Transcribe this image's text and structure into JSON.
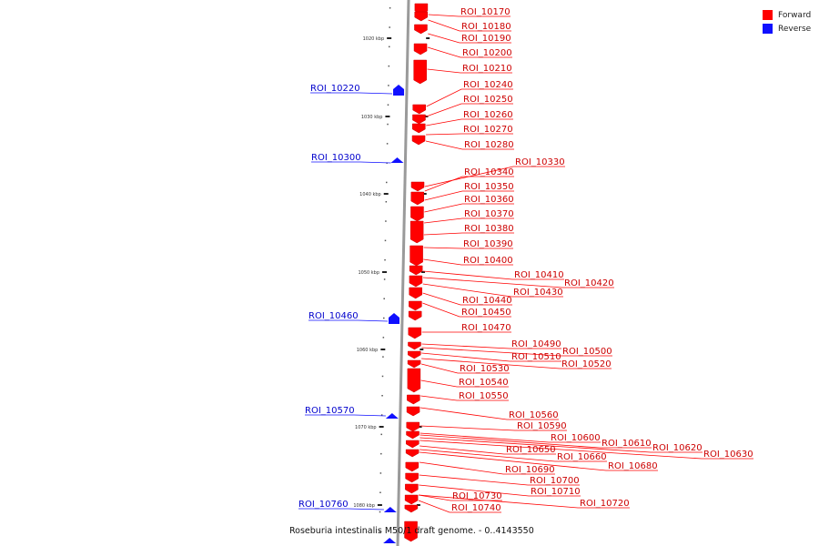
{
  "legend": [
    {
      "label": "Forward",
      "color": "#ff0000"
    },
    {
      "label": "Reverse",
      "color": "#1010ff"
    }
  ],
  "footer": "Roseburia intestinalis M50/1 draft genome. - 0..4143550",
  "ticks": [
    "1020 kbp",
    "1030 kbp",
    "1040 kbp",
    "1050 kbp",
    "1060 kbp",
    "1070 kbp",
    "1080 kbp"
  ],
  "colors": {
    "forward": "#ff0000",
    "reverse": "#1010ff",
    "backbone": "#888888"
  },
  "forward_labels": [
    "ROI_10170",
    "ROI_10180",
    "ROI_10190",
    "ROI_10200",
    "ROI_10210",
    "ROI_10240",
    "ROI_10250",
    "ROI_10260",
    "ROI_10270",
    "ROI_10280",
    "ROI_10330",
    "ROI_10340",
    "ROI_10350",
    "ROI_10360",
    "ROI_10370",
    "ROI_10380",
    "ROI_10390",
    "ROI_10400",
    "ROI_10410",
    "ROI_10420",
    "ROI_10430",
    "ROI_10440",
    "ROI_10450",
    "ROI_10470",
    "ROI_10490",
    "ROI_10500",
    "ROI_10510",
    "ROI_10520",
    "ROI_10530",
    "ROI_10540",
    "ROI_10550",
    "ROI_10560",
    "ROI_10590",
    "ROI_10600",
    "ROI_10610",
    "ROI_10620",
    "ROI_10630",
    "ROI_10650",
    "ROI_10660",
    "ROI_10680",
    "ROI_10690",
    "ROI_10700",
    "ROI_10710",
    "ROI_10720",
    "ROI_10730",
    "ROI_10740"
  ],
  "reverse_labels": [
    "ROI_10220",
    "ROI_10300",
    "ROI_10460",
    "ROI_10570",
    "ROI_10760"
  ]
}
